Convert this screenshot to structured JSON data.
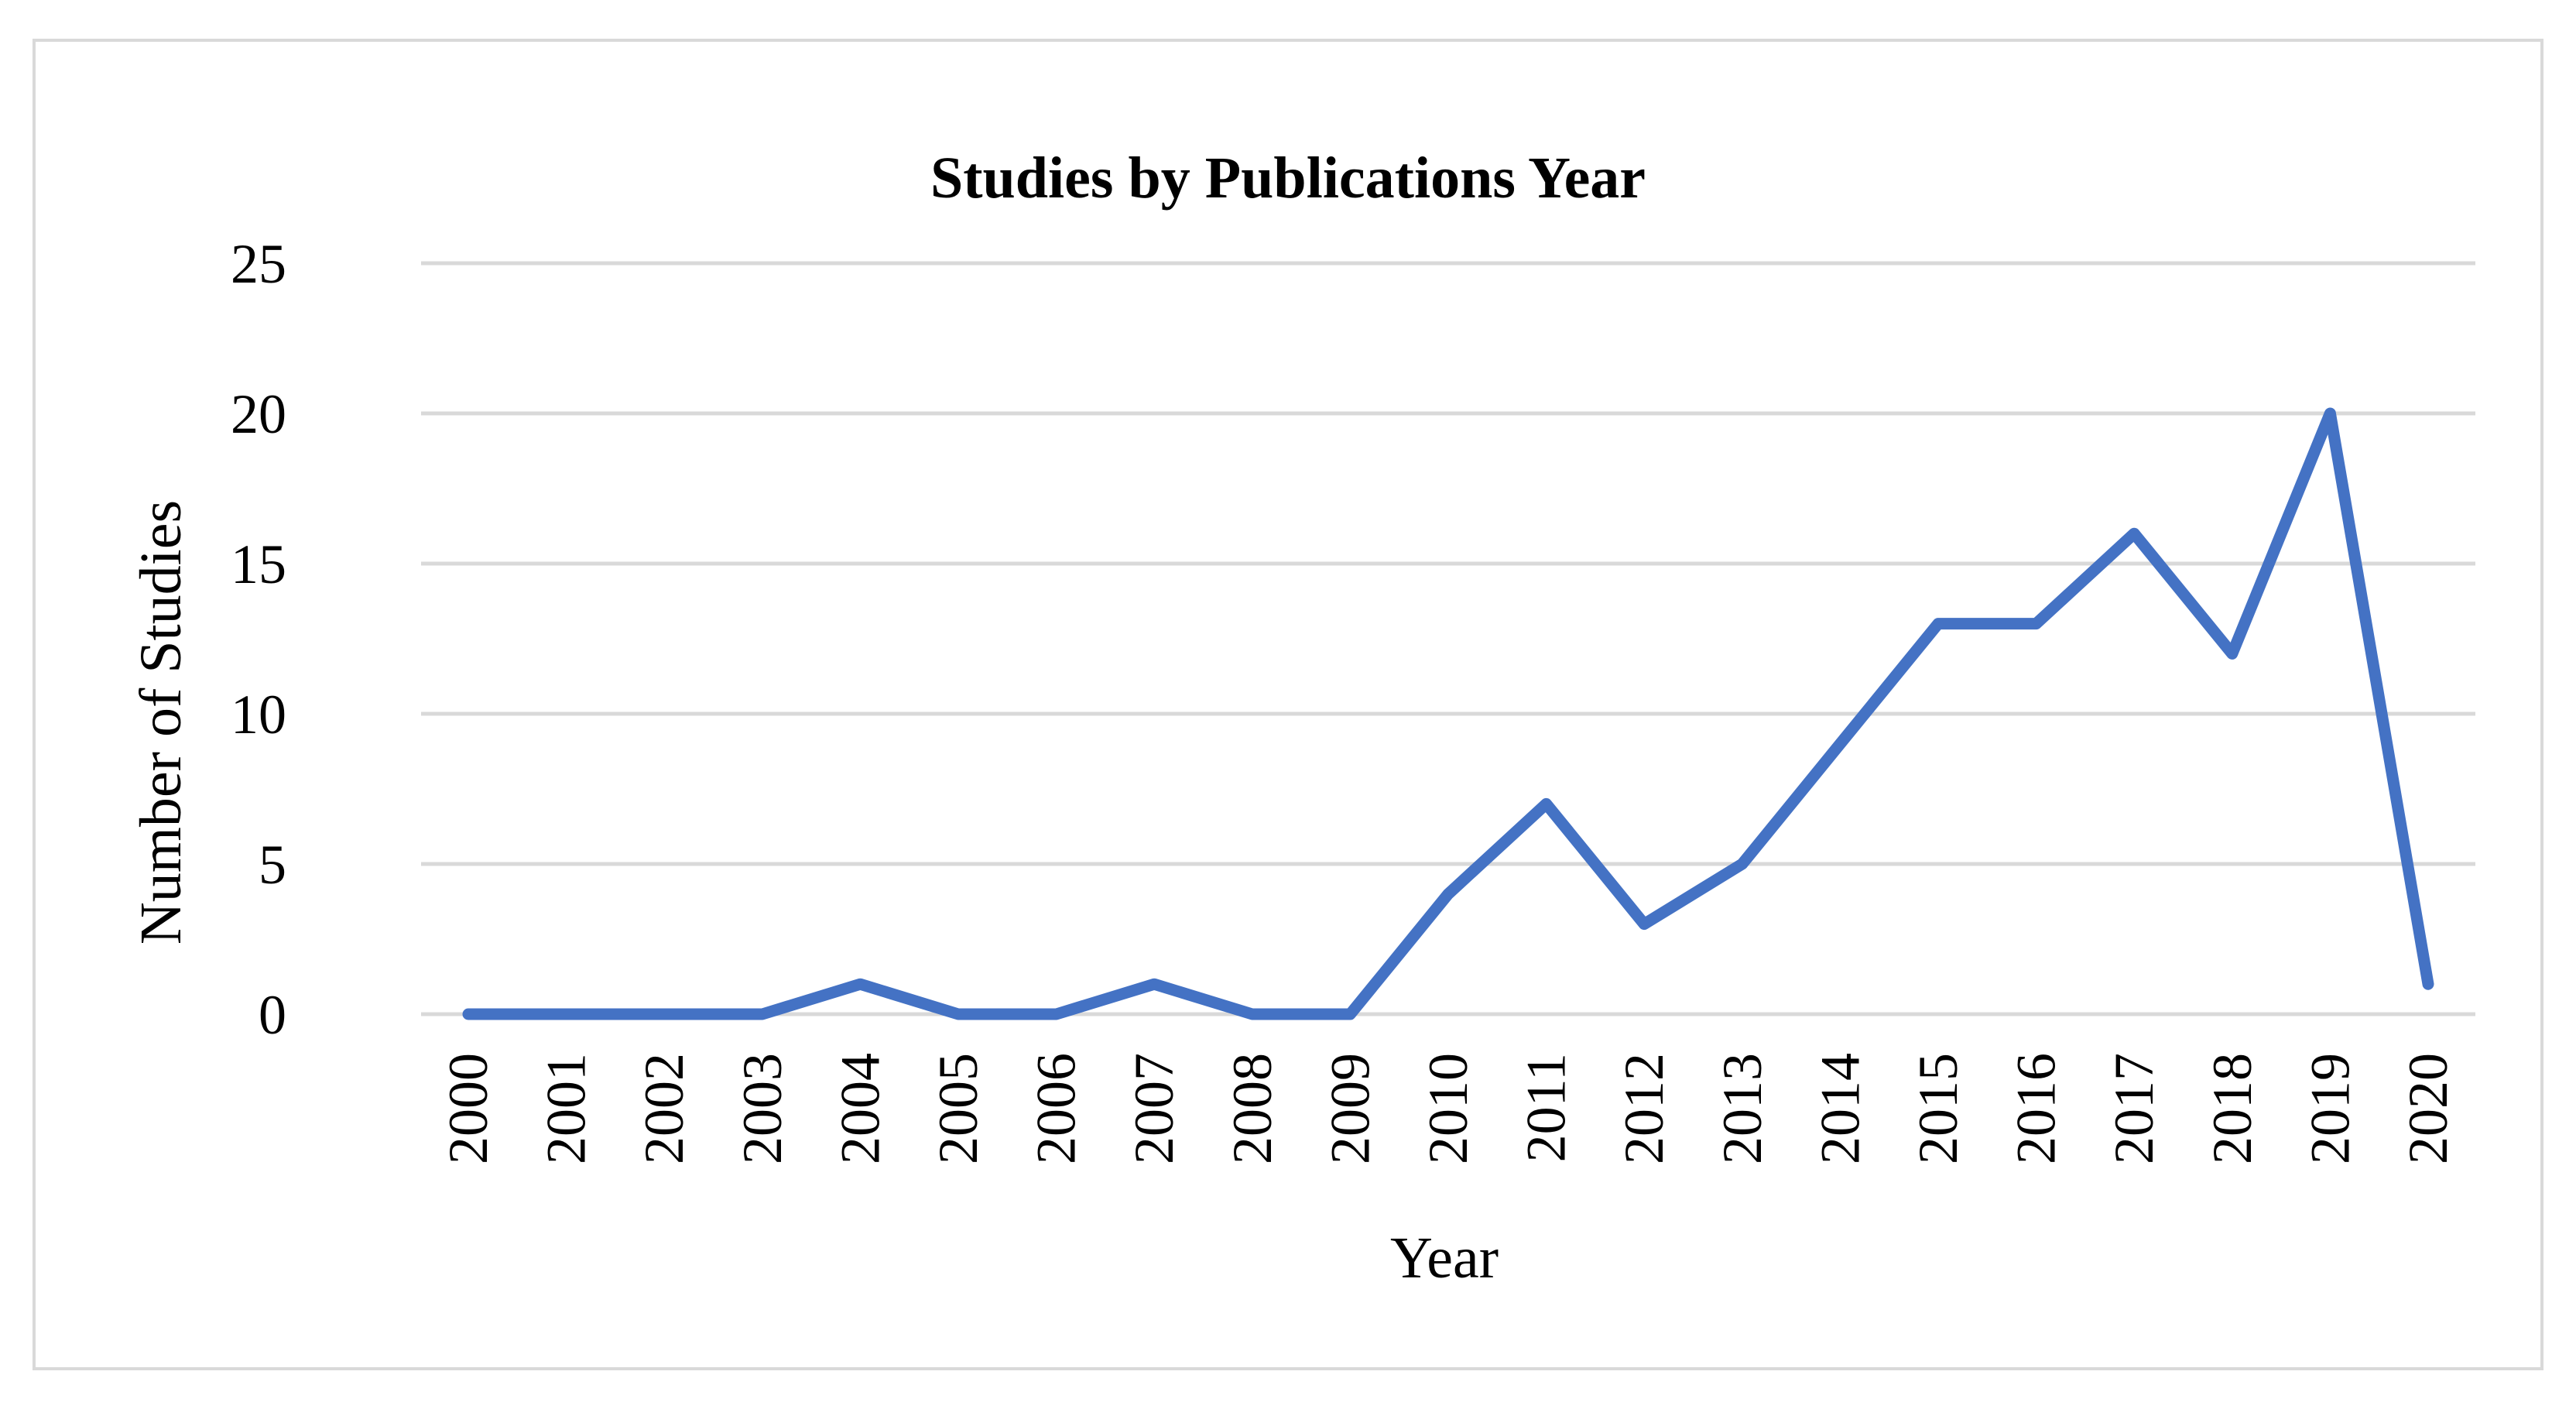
{
  "chart_data": {
    "type": "line",
    "title": "Studies by Publications Year",
    "xlabel": "Year",
    "ylabel": "Number of Studies",
    "categories": [
      "2000",
      "2001",
      "2002",
      "2003",
      "2004",
      "2005",
      "2006",
      "2007",
      "2008",
      "2009",
      "2010",
      "2011",
      "2012",
      "2013",
      "2014",
      "2015",
      "2016",
      "2017",
      "2018",
      "2019",
      "2020"
    ],
    "series": [
      {
        "values": [
          0,
          0,
          0,
          0,
          1,
          0,
          0,
          1,
          0,
          0,
          4,
          7,
          3,
          5,
          9,
          13,
          13,
          16,
          12,
          20,
          1
        ],
        "color": "#4472c4"
      }
    ],
    "ylim": [
      0,
      25
    ],
    "yticks": [
      "0",
      "5",
      "10",
      "15",
      "20",
      "25"
    ],
    "grid": true,
    "legend": "none"
  }
}
